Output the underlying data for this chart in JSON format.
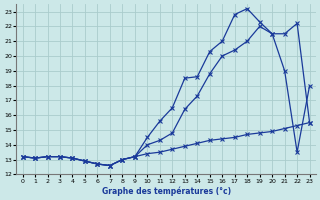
{
  "title": "Graphe des températures (°c)",
  "bg_color": "#cce8e8",
  "grid_color": "#aacccc",
  "line_color": "#1a3a9a",
  "xlim": [
    -0.5,
    23.5
  ],
  "ylim": [
    12,
    23.5
  ],
  "xticks": [
    0,
    1,
    2,
    3,
    4,
    5,
    6,
    7,
    8,
    9,
    10,
    11,
    12,
    13,
    14,
    15,
    16,
    17,
    18,
    19,
    20,
    21,
    22,
    23
  ],
  "yticks": [
    12,
    13,
    14,
    15,
    16,
    17,
    18,
    19,
    20,
    21,
    22,
    23
  ],
  "line1_x": [
    0,
    1,
    2,
    3,
    4,
    5,
    6,
    7,
    8,
    9,
    10,
    11,
    12,
    13,
    14,
    15,
    16,
    17,
    18,
    19,
    20,
    21,
    22,
    23
  ],
  "line1_y": [
    13.2,
    13.1,
    13.2,
    13.2,
    13.1,
    12.9,
    12.7,
    12.6,
    13.0,
    13.2,
    14.5,
    15.6,
    16.5,
    18.5,
    18.6,
    20.3,
    21.0,
    22.8,
    23.2,
    22.3,
    21.5,
    19.0,
    13.5,
    18.0
  ],
  "line2_x": [
    0,
    1,
    2,
    3,
    4,
    5,
    6,
    7,
    8,
    9,
    10,
    11,
    12,
    13,
    14,
    15,
    16,
    17,
    18,
    19,
    20,
    21,
    22,
    23
  ],
  "line2_y": [
    13.2,
    13.1,
    13.2,
    13.2,
    13.1,
    12.9,
    12.7,
    12.6,
    13.0,
    13.2,
    14.0,
    14.3,
    14.8,
    16.4,
    17.3,
    18.8,
    20.0,
    20.4,
    21.0,
    22.0,
    21.5,
    21.5,
    22.2,
    15.5
  ],
  "line3_x": [
    0,
    1,
    2,
    3,
    4,
    5,
    6,
    7,
    8,
    9,
    10,
    11,
    12,
    13,
    14,
    15,
    16,
    17,
    18,
    19,
    20,
    21,
    22,
    23
  ],
  "line3_y": [
    13.2,
    13.1,
    13.2,
    13.2,
    13.1,
    12.9,
    12.7,
    12.6,
    13.0,
    13.2,
    13.4,
    13.5,
    13.7,
    13.9,
    14.1,
    14.3,
    14.4,
    14.5,
    14.7,
    14.8,
    14.9,
    15.1,
    15.3,
    15.5
  ]
}
